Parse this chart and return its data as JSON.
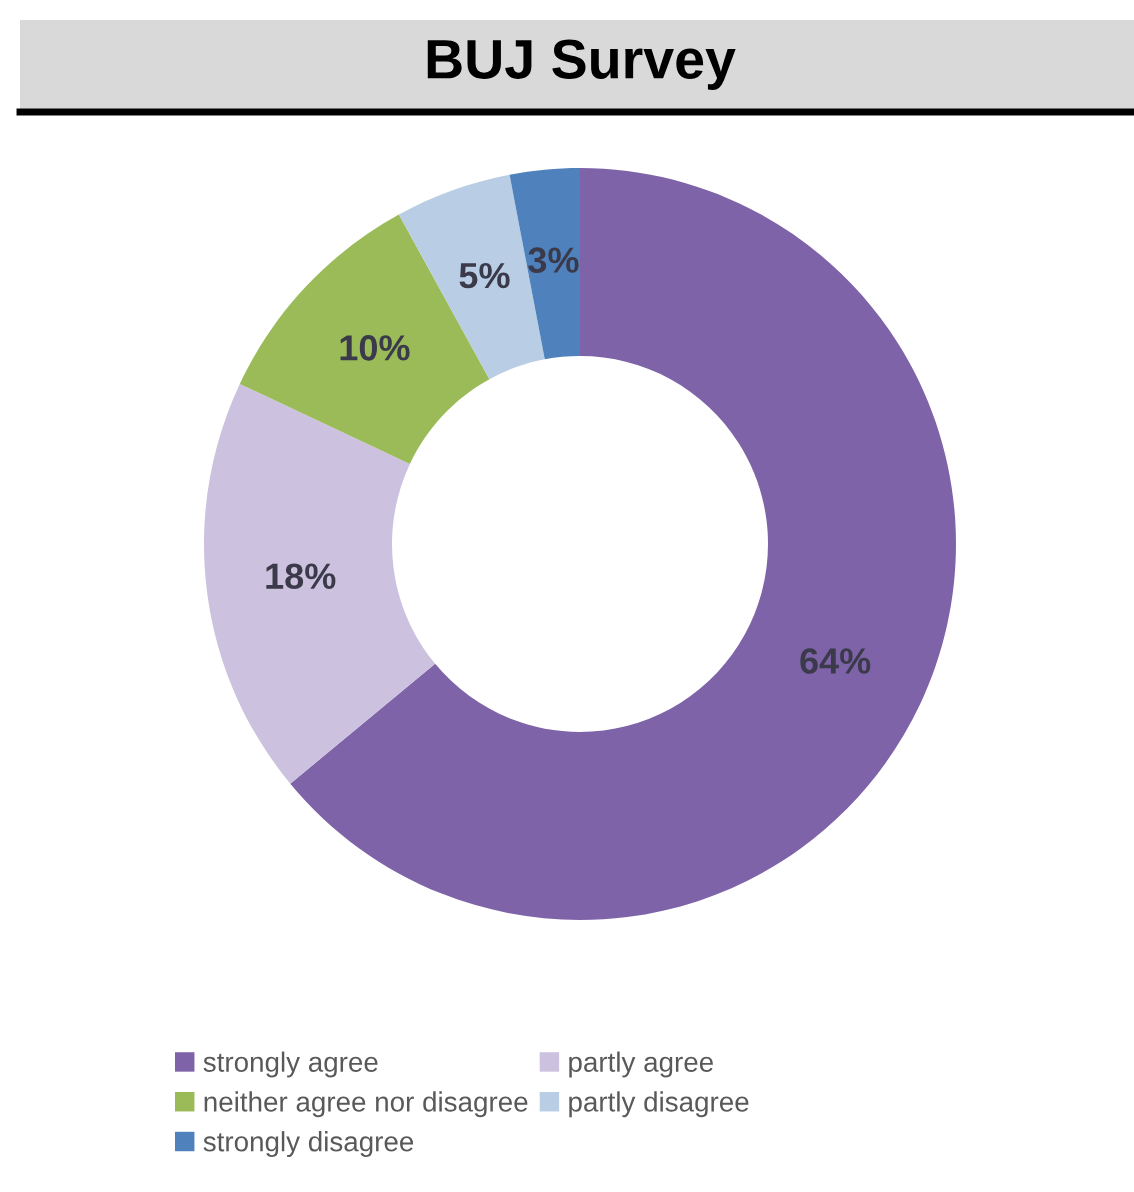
{
  "chart_data": {
    "type": "donut",
    "title": "BUJ Survey",
    "categories": [
      "strongly agree",
      "partly agree",
      "neither agree nor disagree",
      "partly disagree",
      "strongly disagree"
    ],
    "values": [
      64,
      18,
      10,
      5,
      3
    ],
    "colors": [
      "#7f63a8",
      "#ccc1de",
      "#9bbb59",
      "#b9cde5",
      "#4f81bd"
    ],
    "value_labels": [
      "64%",
      "18%",
      "10%",
      "5%",
      "3%"
    ],
    "legend": "bottom"
  }
}
